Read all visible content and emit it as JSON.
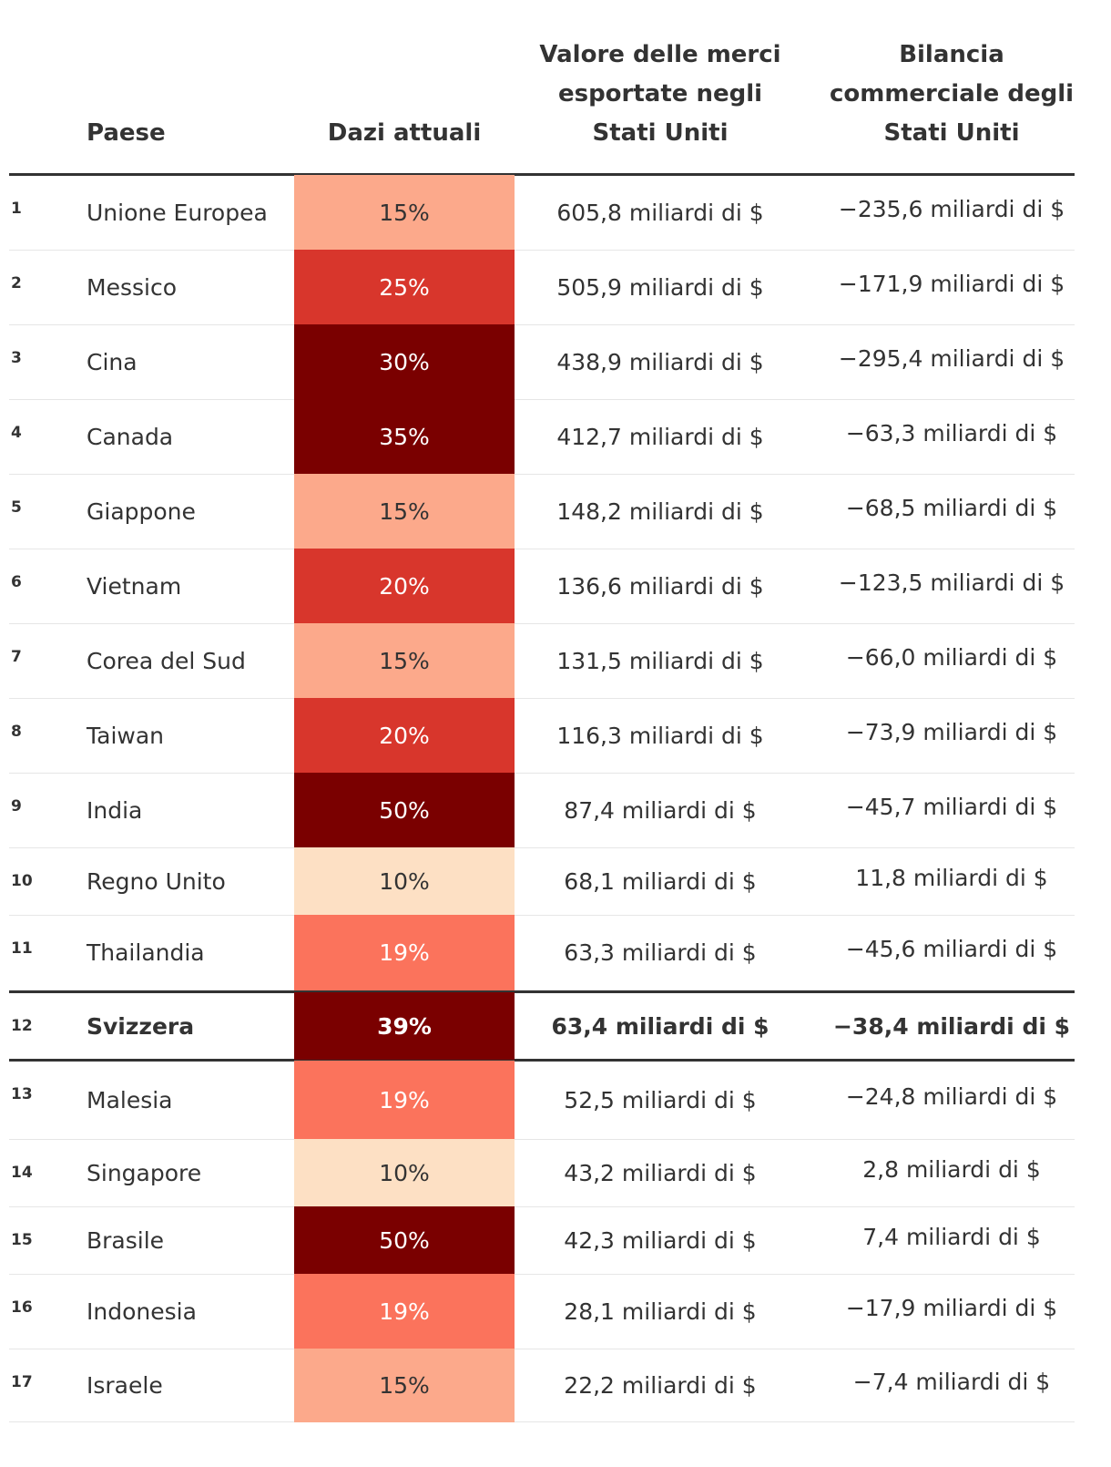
{
  "headers": {
    "country": "Paese",
    "tariff": "Dazi attuali",
    "exports": "Valore delle merci\nesportate negli\nStati Uniti",
    "balance": "Bilancia\ncommerciale degli\nStati Uniti"
  },
  "colors": {
    "tariff_10": "#fde0c4",
    "tariff_15": "#fca98b",
    "tariff_19": "#fb735c",
    "tariff_20_25": "#d8362c",
    "tariff_30_plus": "#7a0000",
    "rule": "#333333",
    "gridline": "#e6e6e6"
  },
  "chart_data": {
    "type": "table",
    "columns": [
      "Paese",
      "Dazi attuali",
      "Valore delle merci esportate negli Stati Uniti",
      "Bilancia commerciale degli Stati Uniti"
    ],
    "highlighted_row": 12,
    "rows": [
      {
        "rank": "1",
        "country": "Unione Europea",
        "tariff": "15%",
        "tariff_value": 15,
        "exports": "605,8 miliardi di $",
        "balance": "−235,6 miliardi di $"
      },
      {
        "rank": "2",
        "country": "Messico",
        "tariff": "25%",
        "tariff_value": 25,
        "exports": "505,9 miliardi di $",
        "balance": "−171,9 miliardi di $"
      },
      {
        "rank": "3",
        "country": "Cina",
        "tariff": "30%",
        "tariff_value": 30,
        "exports": "438,9 miliardi di $",
        "balance": "−295,4 miliardi di $"
      },
      {
        "rank": "4",
        "country": "Canada",
        "tariff": "35%",
        "tariff_value": 35,
        "exports": "412,7 miliardi di $",
        "balance": "−63,3 miliardi di $"
      },
      {
        "rank": "5",
        "country": "Giappone",
        "tariff": "15%",
        "tariff_value": 15,
        "exports": "148,2 miliardi di $",
        "balance": "−68,5 miliardi di $"
      },
      {
        "rank": "6",
        "country": "Vietnam",
        "tariff": "20%",
        "tariff_value": 20,
        "exports": "136,6 miliardi di $",
        "balance": "−123,5 miliardi di $"
      },
      {
        "rank": "7",
        "country": "Corea del Sud",
        "tariff": "15%",
        "tariff_value": 15,
        "exports": "131,5 miliardi di $",
        "balance": "−66,0 miliardi di $"
      },
      {
        "rank": "8",
        "country": "Taiwan",
        "tariff": "20%",
        "tariff_value": 20,
        "exports": "116,3 miliardi di $",
        "balance": "−73,9 miliardi di $"
      },
      {
        "rank": "9",
        "country": "India",
        "tariff": "50%",
        "tariff_value": 50,
        "exports": "87,4 miliardi di $",
        "balance": "−45,7 miliardi di $"
      },
      {
        "rank": "10",
        "country": "Regno Unito",
        "tariff": "10%",
        "tariff_value": 10,
        "exports": "68,1 miliardi di $",
        "balance": "11,8 miliardi di $"
      },
      {
        "rank": "11",
        "country": "Thailandia",
        "tariff": "19%",
        "tariff_value": 19,
        "exports": "63,3 miliardi di $",
        "balance": "−45,6 miliardi di $"
      },
      {
        "rank": "12",
        "country": "Svizzera",
        "tariff": "39%",
        "tariff_value": 39,
        "exports": "63,4 miliardi di $",
        "balance": "−38,4 miliardi di $"
      },
      {
        "rank": "13",
        "country": "Malesia",
        "tariff": "19%",
        "tariff_value": 19,
        "exports": "52,5 miliardi di $",
        "balance": "−24,8 miliardi di $"
      },
      {
        "rank": "14",
        "country": "Singapore",
        "tariff": "10%",
        "tariff_value": 10,
        "exports": "43,2 miliardi di $",
        "balance": "2,8 miliardi di $"
      },
      {
        "rank": "15",
        "country": "Brasile",
        "tariff": "50%",
        "tariff_value": 50,
        "exports": "42,3 miliardi di $",
        "balance": "7,4 miliardi di $"
      },
      {
        "rank": "16",
        "country": "Indonesia",
        "tariff": "19%",
        "tariff_value": 19,
        "exports": "28,1 miliardi di $",
        "balance": "−17,9 miliardi di $"
      },
      {
        "rank": "17",
        "country": "Israele",
        "tariff": "15%",
        "tariff_value": 15,
        "exports": "22,2 miliardi di $",
        "balance": "−7,4 miliardi di $"
      }
    ]
  }
}
